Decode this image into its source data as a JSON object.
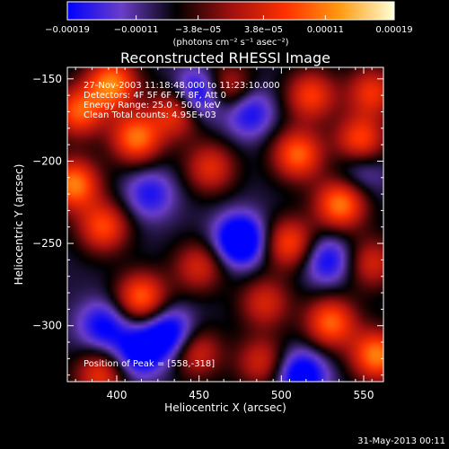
{
  "chart_data": {
    "type": "heatmap",
    "title": "Reconstructed RHESSI Image",
    "xlabel": "Heliocentric X (arcsec)",
    "ylabel": "Heliocentric Y (arcsec)",
    "xlim": [
      370,
      562
    ],
    "ylim": [
      -334,
      -143
    ],
    "xticks": [
      {
        "value": 400,
        "label": "400"
      },
      {
        "value": 450,
        "label": "450"
      },
      {
        "value": 500,
        "label": "500"
      },
      {
        "value": 550,
        "label": "550"
      }
    ],
    "yticks": [
      {
        "value": -150,
        "label": "−150"
      },
      {
        "value": -200,
        "label": "−200"
      },
      {
        "value": -250,
        "label": "−250"
      },
      {
        "value": -300,
        "label": "−300"
      }
    ],
    "colorbar": {
      "range": [
        -0.00019,
        0.00019
      ],
      "ticks": [
        {
          "value": -0.00019,
          "label": "−0.00019"
        },
        {
          "value": -0.00011,
          "label": "−0.00011"
        },
        {
          "value": -3.8e-05,
          "label": "−3.8e−05"
        },
        {
          "value": 3.8e-05,
          "label": "3.8e−05"
        },
        {
          "value": 0.00011,
          "label": "0.00011"
        },
        {
          "value": 0.00019,
          "label": "0.00019"
        }
      ],
      "unit_label": "(photons cm⁻² s⁻¹ asec⁻²)",
      "colors": [
        "#0000ff",
        "#6a3ec8",
        "#000000",
        "#a01010",
        "#ff3000",
        "#ff9a10",
        "#ffffd8"
      ]
    },
    "annotations": [
      "27-Nov-2003 11:18:48.000 to 11:23:10.000",
      "Detectors: 4F 5F 6F 7F 8F, Att 0",
      "Energy Range: 25.0 - 50.0 keV",
      "Clean    Total counts: 4.95E+03"
    ],
    "peak_text": "Position of Peak = [558,-318]",
    "peak": {
      "x": 558,
      "y": -318
    },
    "blobs": [
      {
        "x": 397,
        "y": -153,
        "v": 1.0
      },
      {
        "x": 377,
        "y": -170,
        "v": 0.85
      },
      {
        "x": 412,
        "y": -186,
        "v": 0.95
      },
      {
        "x": 437,
        "y": -170,
        "v": 0.8
      },
      {
        "x": 467,
        "y": -156,
        "v": 0.7
      },
      {
        "x": 518,
        "y": -160,
        "v": 0.75
      },
      {
        "x": 510,
        "y": -196,
        "v": 0.9
      },
      {
        "x": 548,
        "y": -188,
        "v": 0.85
      },
      {
        "x": 555,
        "y": -158,
        "v": 0.7
      },
      {
        "x": 374,
        "y": -214,
        "v": 1.0
      },
      {
        "x": 392,
        "y": -240,
        "v": 0.8
      },
      {
        "x": 457,
        "y": -204,
        "v": 0.65
      },
      {
        "x": 536,
        "y": -226,
        "v": 1.0
      },
      {
        "x": 505,
        "y": -250,
        "v": 0.8
      },
      {
        "x": 415,
        "y": -283,
        "v": 0.9
      },
      {
        "x": 450,
        "y": -264,
        "v": 0.6
      },
      {
        "x": 490,
        "y": -286,
        "v": 0.6
      },
      {
        "x": 530,
        "y": -298,
        "v": 0.9
      },
      {
        "x": 555,
        "y": -262,
        "v": 0.6
      },
      {
        "x": 558,
        "y": -318,
        "v": 1.0
      },
      {
        "x": 488,
        "y": -322,
        "v": 0.6
      },
      {
        "x": 390,
        "y": -330,
        "v": 0.7
      },
      {
        "x": 448,
        "y": -316,
        "v": 0.65
      },
      {
        "x": 420,
        "y": -220,
        "v": -0.5
      },
      {
        "x": 450,
        "y": -160,
        "v": -0.9
      },
      {
        "x": 475,
        "y": -248,
        "v": -1.0
      },
      {
        "x": 432,
        "y": -305,
        "v": -0.8
      },
      {
        "x": 413,
        "y": -316,
        "v": -0.7
      },
      {
        "x": 512,
        "y": -330,
        "v": -0.8
      },
      {
        "x": 528,
        "y": -260,
        "v": -0.6
      },
      {
        "x": 480,
        "y": -170,
        "v": -0.6
      },
      {
        "x": 392,
        "y": -300,
        "v": -0.6
      },
      {
        "x": 548,
        "y": -205,
        "v": -0.4
      }
    ]
  },
  "footer": {
    "timestamp": "31-May-2013 00:11"
  }
}
